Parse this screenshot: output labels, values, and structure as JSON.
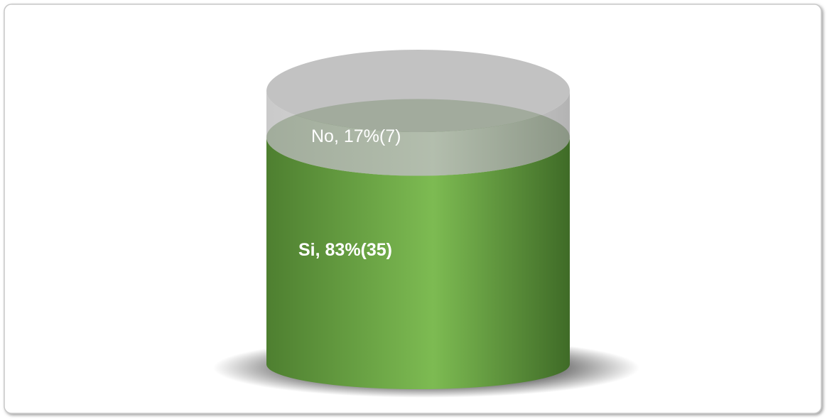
{
  "chart_data": {
    "type": "cylinder",
    "stacked": true,
    "series": [
      {
        "color": "#70ad47",
        "values": [
          83
        ],
        "counts": [
          35
        ],
        "value_labels": [
          "Si, 83%(35)"
        ]
      },
      {
        "color": "#a6a6a6",
        "values": [
          17
        ],
        "counts": [
          7
        ],
        "value_labels": [
          "No, 17%(7)"
        ]
      }
    ]
  }
}
